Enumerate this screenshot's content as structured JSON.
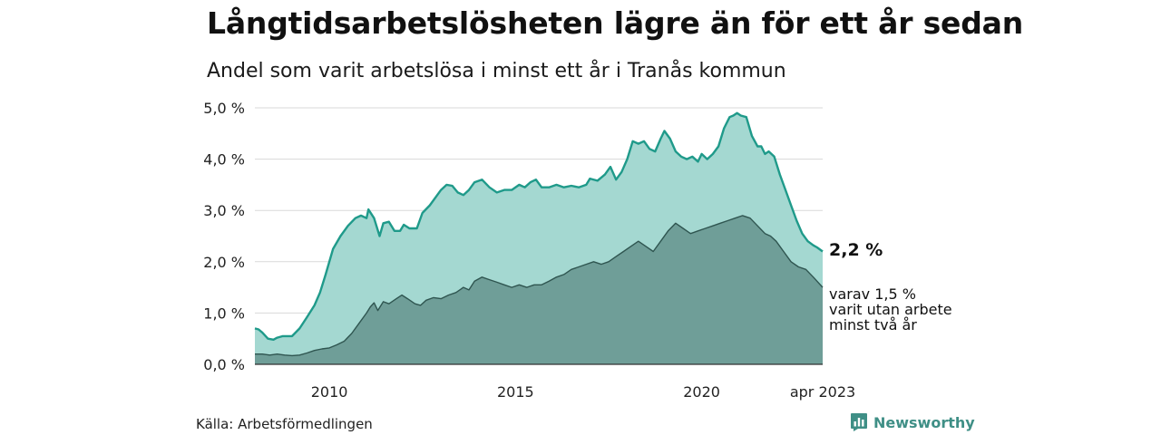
{
  "title": "Långtidsarbetslösheten lägre än för ett år sedan",
  "subtitle": "Andel som varit arbetslösa i minst ett år i Tranås kommun",
  "source": "Källa: Arbetsförmedlingen",
  "brand": "Newsworthy",
  "colors": {
    "series1_line": "#1f9a8a",
    "series1_fill": "#a4d8d1",
    "series2_line": "#2f5550",
    "series2_fill": "#6f9e98",
    "grid": "#d9d9d9",
    "brand": "#3f8f86"
  },
  "chart_data": {
    "type": "area",
    "title": "Långtidsarbetslösheten lägre än för ett år sedan",
    "subtitle": "Andel som varit arbetslösa i minst ett år i Tranås kommun",
    "xlabel": "",
    "ylabel": "",
    "xlim": [
      2008.0,
      2023.25
    ],
    "ylim": [
      0,
      5
    ],
    "grid": true,
    "x_ticks": [
      {
        "value": 2010,
        "label": "2010"
      },
      {
        "value": 2015,
        "label": "2015"
      },
      {
        "value": 2020,
        "label": "2020"
      },
      {
        "value": 2023.25,
        "label": "apr 2023"
      }
    ],
    "y_ticks": [
      {
        "value": 0,
        "label": "0,0 %"
      },
      {
        "value": 1,
        "label": "1,0 %"
      },
      {
        "value": 2,
        "label": "2,0 %"
      },
      {
        "value": 3,
        "label": "3,0 %"
      },
      {
        "value": 4,
        "label": "4,0 %"
      },
      {
        "value": 5,
        "label": "5,0 %"
      }
    ],
    "series": [
      {
        "key": "minst_ett_ar",
        "points": [
          [
            2008.0,
            0.7
          ],
          [
            2008.1,
            0.68
          ],
          [
            2008.2,
            0.62
          ],
          [
            2008.35,
            0.5
          ],
          [
            2008.5,
            0.48
          ],
          [
            2008.6,
            0.52
          ],
          [
            2008.75,
            0.55
          ],
          [
            2009.0,
            0.55
          ],
          [
            2009.2,
            0.7
          ],
          [
            2009.4,
            0.92
          ],
          [
            2009.6,
            1.15
          ],
          [
            2009.75,
            1.4
          ],
          [
            2009.9,
            1.75
          ],
          [
            2010.1,
            2.25
          ],
          [
            2010.3,
            2.5
          ],
          [
            2010.5,
            2.7
          ],
          [
            2010.7,
            2.85
          ],
          [
            2010.85,
            2.9
          ],
          [
            2011.0,
            2.85
          ],
          [
            2011.05,
            3.02
          ],
          [
            2011.2,
            2.85
          ],
          [
            2011.35,
            2.5
          ],
          [
            2011.45,
            2.75
          ],
          [
            2011.6,
            2.78
          ],
          [
            2011.75,
            2.6
          ],
          [
            2011.9,
            2.6
          ],
          [
            2012.0,
            2.72
          ],
          [
            2012.15,
            2.65
          ],
          [
            2012.35,
            2.65
          ],
          [
            2012.5,
            2.95
          ],
          [
            2012.7,
            3.1
          ],
          [
            2012.9,
            3.3
          ],
          [
            2013.0,
            3.4
          ],
          [
            2013.15,
            3.5
          ],
          [
            2013.3,
            3.48
          ],
          [
            2013.45,
            3.35
          ],
          [
            2013.6,
            3.3
          ],
          [
            2013.75,
            3.4
          ],
          [
            2013.9,
            3.55
          ],
          [
            2014.1,
            3.6
          ],
          [
            2014.3,
            3.45
          ],
          [
            2014.5,
            3.35
          ],
          [
            2014.7,
            3.4
          ],
          [
            2014.9,
            3.4
          ],
          [
            2015.1,
            3.5
          ],
          [
            2015.25,
            3.45
          ],
          [
            2015.4,
            3.55
          ],
          [
            2015.55,
            3.6
          ],
          [
            2015.7,
            3.45
          ],
          [
            2015.9,
            3.45
          ],
          [
            2016.1,
            3.5
          ],
          [
            2016.3,
            3.45
          ],
          [
            2016.5,
            3.48
          ],
          [
            2016.7,
            3.45
          ],
          [
            2016.9,
            3.5
          ],
          [
            2017.0,
            3.62
          ],
          [
            2017.2,
            3.58
          ],
          [
            2017.4,
            3.7
          ],
          [
            2017.55,
            3.85
          ],
          [
            2017.7,
            3.6
          ],
          [
            2017.85,
            3.75
          ],
          [
            2018.0,
            4.0
          ],
          [
            2018.15,
            4.35
          ],
          [
            2018.3,
            4.3
          ],
          [
            2018.45,
            4.35
          ],
          [
            2018.6,
            4.2
          ],
          [
            2018.75,
            4.15
          ],
          [
            2018.9,
            4.4
          ],
          [
            2019.0,
            4.55
          ],
          [
            2019.15,
            4.4
          ],
          [
            2019.3,
            4.15
          ],
          [
            2019.45,
            4.05
          ],
          [
            2019.6,
            4.0
          ],
          [
            2019.75,
            4.05
          ],
          [
            2019.9,
            3.95
          ],
          [
            2020.0,
            4.1
          ],
          [
            2020.15,
            4.0
          ],
          [
            2020.3,
            4.1
          ],
          [
            2020.45,
            4.25
          ],
          [
            2020.6,
            4.6
          ],
          [
            2020.75,
            4.82
          ],
          [
            2020.85,
            4.85
          ],
          [
            2020.95,
            4.9
          ],
          [
            2021.05,
            4.85
          ],
          [
            2021.2,
            4.82
          ],
          [
            2021.35,
            4.45
          ],
          [
            2021.5,
            4.25
          ],
          [
            2021.6,
            4.25
          ],
          [
            2021.7,
            4.1
          ],
          [
            2021.8,
            4.15
          ],
          [
            2021.95,
            4.05
          ],
          [
            2022.1,
            3.7
          ],
          [
            2022.25,
            3.4
          ],
          [
            2022.4,
            3.1
          ],
          [
            2022.55,
            2.8
          ],
          [
            2022.7,
            2.55
          ],
          [
            2022.85,
            2.4
          ],
          [
            2023.0,
            2.32
          ],
          [
            2023.1,
            2.28
          ],
          [
            2023.25,
            2.2
          ]
        ]
      },
      {
        "key": "minst_tva_ar",
        "points": [
          [
            2008.0,
            0.2
          ],
          [
            2008.2,
            0.2
          ],
          [
            2008.4,
            0.18
          ],
          [
            2008.6,
            0.2
          ],
          [
            2008.8,
            0.18
          ],
          [
            2009.0,
            0.17
          ],
          [
            2009.2,
            0.18
          ],
          [
            2009.4,
            0.22
          ],
          [
            2009.6,
            0.27
          ],
          [
            2009.8,
            0.3
          ],
          [
            2010.0,
            0.32
          ],
          [
            2010.2,
            0.38
          ],
          [
            2010.4,
            0.45
          ],
          [
            2010.6,
            0.6
          ],
          [
            2010.8,
            0.8
          ],
          [
            2011.0,
            1.0
          ],
          [
            2011.1,
            1.12
          ],
          [
            2011.2,
            1.2
          ],
          [
            2011.3,
            1.05
          ],
          [
            2011.45,
            1.22
          ],
          [
            2011.6,
            1.18
          ],
          [
            2011.8,
            1.28
          ],
          [
            2011.95,
            1.35
          ],
          [
            2012.1,
            1.28
          ],
          [
            2012.3,
            1.18
          ],
          [
            2012.45,
            1.15
          ],
          [
            2012.6,
            1.25
          ],
          [
            2012.8,
            1.3
          ],
          [
            2013.0,
            1.28
          ],
          [
            2013.2,
            1.35
          ],
          [
            2013.4,
            1.4
          ],
          [
            2013.6,
            1.5
          ],
          [
            2013.75,
            1.45
          ],
          [
            2013.9,
            1.62
          ],
          [
            2014.1,
            1.7
          ],
          [
            2014.3,
            1.65
          ],
          [
            2014.5,
            1.6
          ],
          [
            2014.7,
            1.55
          ],
          [
            2014.9,
            1.5
          ],
          [
            2015.1,
            1.55
          ],
          [
            2015.3,
            1.5
          ],
          [
            2015.5,
            1.55
          ],
          [
            2015.7,
            1.55
          ],
          [
            2015.9,
            1.62
          ],
          [
            2016.1,
            1.7
          ],
          [
            2016.3,
            1.75
          ],
          [
            2016.5,
            1.85
          ],
          [
            2016.7,
            1.9
          ],
          [
            2016.9,
            1.95
          ],
          [
            2017.1,
            2.0
          ],
          [
            2017.3,
            1.95
          ],
          [
            2017.5,
            2.0
          ],
          [
            2017.7,
            2.1
          ],
          [
            2017.9,
            2.2
          ],
          [
            2018.1,
            2.3
          ],
          [
            2018.3,
            2.4
          ],
          [
            2018.5,
            2.3
          ],
          [
            2018.7,
            2.2
          ],
          [
            2018.9,
            2.4
          ],
          [
            2019.1,
            2.6
          ],
          [
            2019.3,
            2.75
          ],
          [
            2019.5,
            2.65
          ],
          [
            2019.7,
            2.55
          ],
          [
            2019.9,
            2.6
          ],
          [
            2020.1,
            2.65
          ],
          [
            2020.3,
            2.7
          ],
          [
            2020.5,
            2.75
          ],
          [
            2020.7,
            2.8
          ],
          [
            2020.9,
            2.85
          ],
          [
            2021.1,
            2.9
          ],
          [
            2021.3,
            2.85
          ],
          [
            2021.5,
            2.7
          ],
          [
            2021.7,
            2.55
          ],
          [
            2021.85,
            2.5
          ],
          [
            2022.0,
            2.4
          ],
          [
            2022.2,
            2.2
          ],
          [
            2022.4,
            2.0
          ],
          [
            2022.6,
            1.9
          ],
          [
            2022.8,
            1.85
          ],
          [
            2023.0,
            1.7
          ],
          [
            2023.25,
            1.5
          ]
        ]
      }
    ],
    "annotations": {
      "last_value_main": "2,2 %",
      "last_value_sub_lines": [
        "varav 1,5 %",
        "varit utan arbete",
        "minst två år"
      ]
    }
  }
}
